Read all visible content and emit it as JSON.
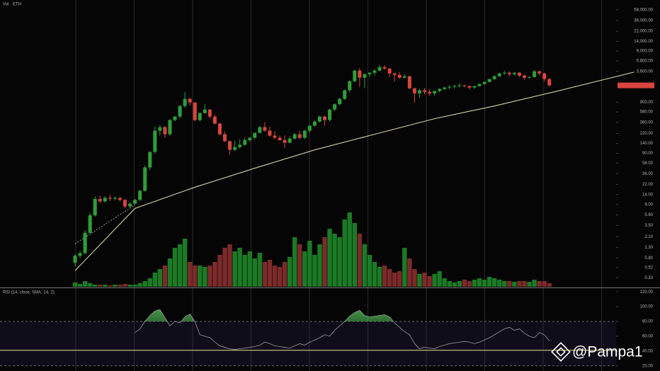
{
  "chart_data": [
    {
      "type": "candlestick",
      "volume_label": "Vol",
      "symbol": "ETH",
      "log_scale": true,
      "ylim": [
        0.22,
        90000
      ],
      "yticks": [
        {
          "value": 0.33,
          "label": "0.33"
        },
        {
          "value": 0.52,
          "label": "0.52"
        },
        {
          "value": 0.8,
          "label": "0.80"
        },
        {
          "value": 1.3,
          "label": "1.30"
        },
        {
          "value": 2.1,
          "label": "2.10"
        },
        {
          "value": 3.5,
          "label": "3.50"
        },
        {
          "value": 5.6,
          "label": "5.60"
        },
        {
          "value": 9,
          "label": "9.00"
        },
        {
          "value": 14,
          "label": "14.00"
        },
        {
          "value": 22,
          "label": "22.00"
        },
        {
          "value": 36,
          "label": "36.00"
        },
        {
          "value": 58,
          "label": "58.00"
        },
        {
          "value": 90,
          "label": "90.00"
        },
        {
          "value": 140,
          "label": "140.00"
        },
        {
          "value": 220,
          "label": "220.00"
        },
        {
          "value": 360,
          "label": "360.00"
        },
        {
          "value": 580,
          "label": "580.00"
        },
        {
          "value": 900,
          "label": "900.00"
        },
        {
          "value": 3600,
          "label": "3,600.00"
        },
        {
          "value": 5800,
          "label": "5,800.00"
        },
        {
          "value": 9000,
          "label": "9,000.00"
        },
        {
          "value": 14000,
          "label": "14,000.00"
        },
        {
          "value": 22000,
          "label": "22,000.00"
        },
        {
          "value": 36000,
          "label": "36,000.00"
        },
        {
          "value": 58000,
          "label": "58,000.00"
        }
      ],
      "up_color": "#2e9e3a",
      "down_color": "#d9453f",
      "volume_up_color": "#1b7a25",
      "volume_down_color": "#7d2a2a",
      "ohlc": [
        [
          0.65,
          0.95,
          0.55,
          0.89
        ],
        [
          0.89,
          1.1,
          0.8,
          1.0
        ],
        [
          1.0,
          2.8,
          0.95,
          2.5
        ],
        [
          2.5,
          6.2,
          2.3,
          5.5
        ],
        [
          5.5,
          13,
          5.2,
          11.5
        ],
        [
          11.5,
          13.5,
          9.5,
          10.3
        ],
        [
          10.3,
          13,
          9.8,
          12.1
        ],
        [
          12.1,
          14,
          10.5,
          11.6
        ],
        [
          11.6,
          13,
          10.8,
          12
        ],
        [
          12,
          12.8,
          10.2,
          11
        ],
        [
          11,
          11.5,
          7.5,
          8.2
        ],
        [
          8.2,
          9.8,
          7.8,
          9.3
        ],
        [
          9.3,
          11.5,
          9,
          11
        ],
        [
          11,
          17.5,
          10.5,
          16.6
        ],
        [
          16.6,
          52,
          16,
          47.5
        ],
        [
          47.5,
          98,
          42,
          96
        ],
        [
          96,
          300,
          88,
          249
        ],
        [
          249,
          320,
          200,
          292
        ],
        [
          292,
          310,
          180,
          212
        ],
        [
          212,
          420,
          200,
          402
        ],
        [
          402,
          480,
          380,
          471
        ],
        [
          471,
          800,
          430,
          759
        ],
        [
          759,
          1420,
          700,
          1045
        ],
        [
          1045,
          1100,
          780,
          889
        ],
        [
          889,
          900,
          380,
          402
        ],
        [
          402,
          570,
          380,
          552
        ],
        [
          552,
          830,
          530,
          647
        ],
        [
          647,
          660,
          430,
          471
        ],
        [
          471,
          510,
          330,
          343
        ],
        [
          343,
          360,
          200,
          212
        ],
        [
          212,
          240,
          150,
          155
        ],
        [
          155,
          160,
          85,
          105
        ],
        [
          105,
          160,
          100,
          119
        ],
        [
          119,
          170,
          110,
          132
        ],
        [
          132,
          185,
          125,
          163
        ],
        [
          163,
          185,
          150,
          181
        ],
        [
          181,
          230,
          170,
          226
        ],
        [
          226,
          310,
          220,
          292
        ],
        [
          292,
          365,
          240,
          249
        ],
        [
          249,
          300,
          190,
          200
        ],
        [
          200,
          240,
          170,
          181
        ],
        [
          181,
          200,
          160,
          163
        ],
        [
          163,
          200,
          115,
          145
        ],
        [
          145,
          195,
          140,
          175
        ],
        [
          175,
          225,
          165,
          212
        ],
        [
          212,
          250,
          170,
          181
        ],
        [
          181,
          260,
          170,
          249
        ],
        [
          249,
          320,
          230,
          312
        ],
        [
          312,
          400,
          300,
          376
        ],
        [
          376,
          490,
          360,
          471
        ],
        [
          471,
          490,
          310,
          402
        ],
        [
          402,
          660,
          380,
          647
        ],
        [
          647,
          850,
          600,
          820
        ],
        [
          820,
          1100,
          800,
          1045
        ],
        [
          1045,
          1600,
          1000,
          1540
        ],
        [
          1540,
          2400,
          1400,
          2313
        ],
        [
          2313,
          3900,
          2200,
          3733
        ],
        [
          3733,
          4200,
          1800,
          2718
        ],
        [
          2718,
          3300,
          1700,
          3186
        ],
        [
          3186,
          3500,
          2800,
          3400
        ],
        [
          3400,
          4000,
          3000,
          3733
        ],
        [
          3733,
          4800,
          3600,
          4375
        ],
        [
          4375,
          4800,
          3900,
          4100
        ],
        [
          4100,
          4200,
          2800,
          3290
        ],
        [
          3290,
          3400,
          2300,
          3080
        ],
        [
          3080,
          3500,
          2600,
          2718
        ],
        [
          2718,
          3200,
          2600,
          2900
        ],
        [
          2900,
          2950,
          1600,
          1683
        ],
        [
          1683,
          1750,
          880,
          1340
        ],
        [
          1340,
          1650,
          1100,
          1540
        ],
        [
          1540,
          1700,
          1300,
          1436
        ],
        [
          1436,
          1600,
          1200,
          1340
        ],
        [
          1340,
          1520,
          1200,
          1490
        ],
        [
          1490,
          1700,
          1400,
          1630
        ],
        [
          1630,
          1800,
          1550,
          1740
        ],
        [
          1740,
          1950,
          1600,
          1800
        ],
        [
          1800,
          2000,
          1700,
          1860
        ],
        [
          1860,
          2100,
          1750,
          1920
        ],
        [
          1920,
          1980,
          1750,
          1860
        ],
        [
          1860,
          1900,
          1600,
          1740
        ],
        [
          1740,
          1900,
          1650,
          1860
        ],
        [
          1860,
          2100,
          1800,
          2040
        ],
        [
          2040,
          2300,
          2000,
          2240
        ],
        [
          2240,
          2600,
          2200,
          2550
        ],
        [
          2550,
          3000,
          2450,
          2900
        ],
        [
          2900,
          3400,
          2800,
          3290
        ],
        [
          3290,
          3700,
          3100,
          3400
        ],
        [
          3400,
          3600,
          2900,
          3186
        ],
        [
          3186,
          3500,
          3000,
          3400
        ],
        [
          3400,
          3500,
          2800,
          2990
        ],
        [
          2990,
          3100,
          2500,
          2718
        ],
        [
          2718,
          2900,
          2600,
          2800
        ],
        [
          2800,
          3800,
          2700,
          3620
        ],
        [
          3620,
          3750,
          3000,
          3290
        ],
        [
          3290,
          3400,
          2300,
          2550
        ],
        [
          2550,
          2700,
          1800,
          1920
        ]
      ],
      "volume_lim": [
        0,
        120
      ],
      "volume": [
        6,
        4,
        8,
        5,
        3,
        3,
        3,
        2,
        3,
        3,
        4,
        3,
        3,
        5,
        8,
        12,
        20,
        25,
        30,
        40,
        55,
        60,
        68,
        35,
        30,
        30,
        28,
        30,
        35,
        45,
        55,
        60,
        50,
        55,
        45,
        50,
        40,
        48,
        35,
        38,
        30,
        28,
        35,
        42,
        70,
        60,
        50,
        65,
        45,
        60,
        70,
        82,
        75,
        70,
        95,
        105,
        90,
        75,
        60,
        45,
        35,
        28,
        30,
        25,
        20,
        22,
        55,
        40,
        25,
        18,
        20,
        15,
        18,
        22,
        12,
        8,
        6,
        8,
        10,
        8,
        10,
        12,
        10,
        14,
        12,
        10,
        8,
        8,
        7,
        8,
        8,
        7,
        10,
        8,
        8,
        5
      ],
      "trendline": {
        "color": "#d6cfa6",
        "x": [
          0,
          12,
          24,
          36,
          48,
          60,
          72,
          84,
          96,
          112
        ],
        "values": [
          0.455,
          7.5,
          19.5,
          46,
          105,
          212,
          428,
          759,
          1436,
          3500
        ]
      },
      "dashed_line": {
        "color": "#bbbbbb",
        "x": [
          0,
          12
        ],
        "values": [
          1.52,
          8.8
        ]
      }
    },
    {
      "type": "line",
      "title": "RSI (14, close, SMA, 14, 2)",
      "color": "#9a9a9a",
      "fill_color": "#4caf50",
      "ylim": [
        13,
        124
      ],
      "yticks": [
        {
          "value": 120,
          "label": "120.00"
        },
        {
          "value": 100,
          "label": "100.00"
        },
        {
          "value": 80,
          "label": "80.00"
        },
        {
          "value": 60,
          "label": "60.00"
        },
        {
          "value": 40,
          "label": "40.00"
        },
        {
          "value": 20,
          "label": "20.00"
        }
      ],
      "levels": [
        80,
        20
      ],
      "signal_level": 41,
      "signal_color": "#e8e29a",
      "values": [
        null,
        null,
        null,
        null,
        null,
        null,
        null,
        null,
        null,
        null,
        null,
        null,
        65,
        70,
        80,
        88,
        94,
        96,
        85,
        74,
        80,
        78,
        86,
        90,
        80,
        62,
        60,
        58,
        52,
        47,
        45,
        43,
        42,
        43,
        44,
        45,
        46,
        48,
        52,
        50,
        47,
        46,
        45,
        44,
        47,
        50,
        48,
        52,
        55,
        58,
        62,
        60,
        68,
        74,
        80,
        87,
        92,
        95,
        88,
        86,
        87,
        88,
        89,
        86,
        78,
        72,
        66,
        62,
        50,
        43,
        45,
        44,
        43,
        46,
        48,
        50,
        51,
        52,
        53,
        52,
        50,
        52,
        55,
        58,
        62,
        66,
        70,
        72,
        68,
        70,
        64,
        60,
        58,
        65,
        62,
        54
      ]
    }
  ],
  "watermark": "@Pampa1"
}
